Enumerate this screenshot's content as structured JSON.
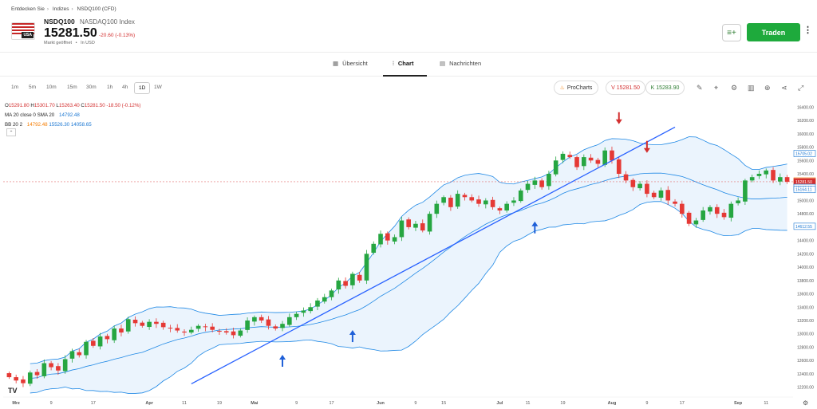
{
  "breadcrumb": [
    "Entdecken Sie",
    "Indizes",
    "NSDQ100 (CFD)"
  ],
  "instrument": {
    "symbol": "NSDQ100",
    "full_name": "NASDAQ100 Index",
    "price": "15281.50",
    "change": "-20.60 (-0.13%)",
    "market_status": "Markt geöffnet",
    "currency": "In USD",
    "flag_label": "USA"
  },
  "actions": {
    "trade_label": "Traden",
    "watchlist_icon": "add-to-watchlist-icon",
    "more_icon": "more-vertical-icon"
  },
  "tabs": [
    {
      "label": "Übersicht",
      "icon": "grid-icon"
    },
    {
      "label": "Chart",
      "icon": "candlestick-icon",
      "active": true
    },
    {
      "label": "Nachrichten",
      "icon": "news-icon"
    }
  ],
  "timeframes": [
    "1m",
    "5m",
    "10m",
    "15m",
    "30m",
    "1h",
    "4h",
    "1D",
    "1W"
  ],
  "active_timeframe": "1D",
  "prochart_label": "ProCharts",
  "sell_price": "V 15281.50",
  "buy_price": "K 15283.90",
  "legend": {
    "ohlc": {
      "o_label": "O",
      "o": "15291.80",
      "h_label": "H",
      "h": "15301.70",
      "l_label": "L",
      "l": "15263.40",
      "c_label": "C",
      "c": "15281.50",
      "chg": "-18.50 (-0.12%)"
    },
    "ma": {
      "label": "MA 20 close 0 SMA 20",
      "value": "14792.48"
    },
    "bb": {
      "label": "BB 20 2",
      "basis": "14792.48",
      "upper": "15526.30",
      "lower": "14058.65"
    }
  },
  "chart_data": {
    "type": "candlestick",
    "y_ticks": [
      12200,
      12400,
      12600,
      12800,
      13000,
      13200,
      13400,
      13600,
      13800,
      14000,
      14200,
      14400,
      14600,
      14800,
      15000,
      15200,
      15400,
      15600,
      15800,
      16000,
      16200,
      16400
    ],
    "y_tick_labels": [
      "12200.00",
      "12400.00",
      "12600.00",
      "12800.00",
      "13000.00",
      "13200.00",
      "13400.00",
      "13600.00",
      "13800.00",
      "14000.00",
      "14200.00",
      "14400.00",
      "14600.00",
      "14800.00",
      "15000.00",
      "15200.00",
      "15400.00",
      "15600.00",
      "15800.00",
      "16000.00",
      "16200.00",
      "16400.00"
    ],
    "ylim": [
      12100,
      16500
    ],
    "x_tick_labels": [
      "Mrz",
      "9",
      "17",
      "Apr",
      "11",
      "19",
      "Mai",
      "9",
      "17",
      "Jun",
      "9",
      "15",
      "Jul",
      "11",
      "19",
      "Aug",
      "9",
      "17",
      "Sep",
      "11"
    ],
    "x_tick_index": [
      1,
      6,
      12,
      20,
      25,
      30,
      35,
      41,
      46,
      53,
      58,
      62,
      70,
      74,
      79,
      86,
      91,
      96,
      104,
      108
    ],
    "price_tags": [
      {
        "value": 15705.02,
        "label": "15705.02",
        "color": "#1976d2"
      },
      {
        "value": 15292.62,
        "label": "15292.62",
        "color": "#f57c00"
      },
      {
        "value": 15281.5,
        "label": "15281.50",
        "color": "#d32f2f"
      },
      {
        "value": 15196.13,
        "label": "15196.13",
        "color": "#1976d2"
      },
      {
        "value": 15164.11,
        "label": "15164.11",
        "color": "#1976d2"
      },
      {
        "value": 14612.55,
        "label": "14612.55",
        "color": "#1976d2"
      }
    ],
    "annotations": [
      {
        "type": "arrow-up",
        "index": 39,
        "value": 12650,
        "color": "#1e5fd8"
      },
      {
        "type": "arrow-up",
        "index": 49,
        "value": 13020,
        "color": "#1e5fd8"
      },
      {
        "type": "arrow-up",
        "index": 75,
        "value": 14650,
        "color": "#1e5fd8"
      },
      {
        "type": "arrow-down",
        "index": 87,
        "value": 16180,
        "color": "#d32f2f"
      },
      {
        "type": "arrow-down",
        "index": 91,
        "value": 15750,
        "color": "#d32f2f"
      }
    ],
    "trendline": {
      "from": [
        26,
        12250
      ],
      "to": [
        95,
        16100
      ],
      "color": "#2962ff"
    },
    "up_color": "#26a641",
    "down_color": "#e53935",
    "band_color": "#1e88e5",
    "closes": [
      12350,
      12300,
      12260,
      12420,
      12380,
      12560,
      12500,
      12450,
      12620,
      12740,
      12680,
      12880,
      12820,
      12960,
      12920,
      13080,
      13020,
      13220,
      13160,
      13120,
      13180,
      13150,
      13100,
      13080,
      13050,
      13020,
      13060,
      13120,
      13100,
      13060,
      13040,
      13020,
      12980,
      13050,
      13200,
      13250,
      13200,
      13120,
      13080,
      13150,
      13250,
      13300,
      13350,
      13400,
      13500,
      13550,
      13650,
      13800,
      13720,
      13900,
      13800,
      14200,
      14350,
      14500,
      14400,
      14450,
      14700,
      14600,
      14650,
      14550,
      14800,
      14950,
      15050,
      14900,
      15100,
      15050,
      15000,
      14950,
      15000,
      14900,
      14850,
      14950,
      15000,
      15150,
      15250,
      15300,
      15200,
      15400,
      15600,
      15700,
      15650,
      15500,
      15650,
      15600,
      15550,
      15750,
      15600,
      15400,
      15300,
      15200,
      15250,
      15100,
      15050,
      15150,
      15000,
      14950,
      14800,
      14650,
      14700,
      14850,
      14900,
      14800,
      14750,
      14950,
      15000,
      15300,
      15350,
      15400,
      15450,
      15300,
      15350,
      15281
    ]
  }
}
